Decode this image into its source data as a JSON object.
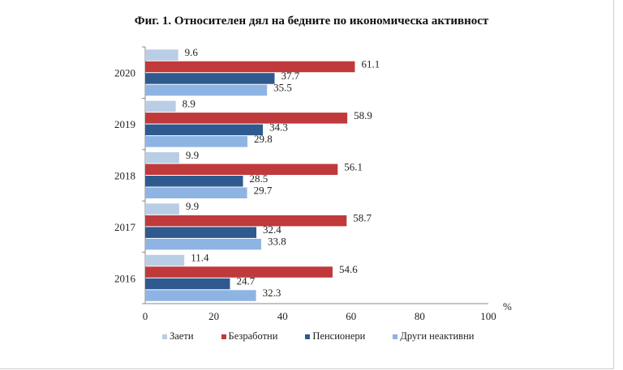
{
  "chart_data": {
    "type": "bar",
    "orientation": "horizontal",
    "title": "Фиг. 1. Относителен дял на бедните по икономическа активност",
    "categories": [
      "2020",
      "2019",
      "2018",
      "2017",
      "2016"
    ],
    "series": [
      {
        "name": "Заети",
        "color": "#b9cde5",
        "values": [
          9.6,
          8.9,
          9.9,
          9.9,
          11.4
        ]
      },
      {
        "name": "Безработни",
        "color": "#c0393b",
        "values": [
          61.1,
          58.9,
          56.1,
          58.7,
          54.6
        ]
      },
      {
        "name": "Пенсионери",
        "color": "#2f5a8f",
        "values": [
          37.7,
          34.3,
          28.5,
          32.4,
          24.7
        ]
      },
      {
        "name": "Други неактивни",
        "color": "#8eb4e3",
        "values": [
          35.5,
          29.8,
          29.7,
          33.8,
          32.3
        ]
      }
    ],
    "xlim": [
      0,
      100
    ],
    "xticks": [
      "0",
      "20",
      "40",
      "60",
      "80",
      "100"
    ],
    "xlabel": "%",
    "legend": "bottom"
  }
}
